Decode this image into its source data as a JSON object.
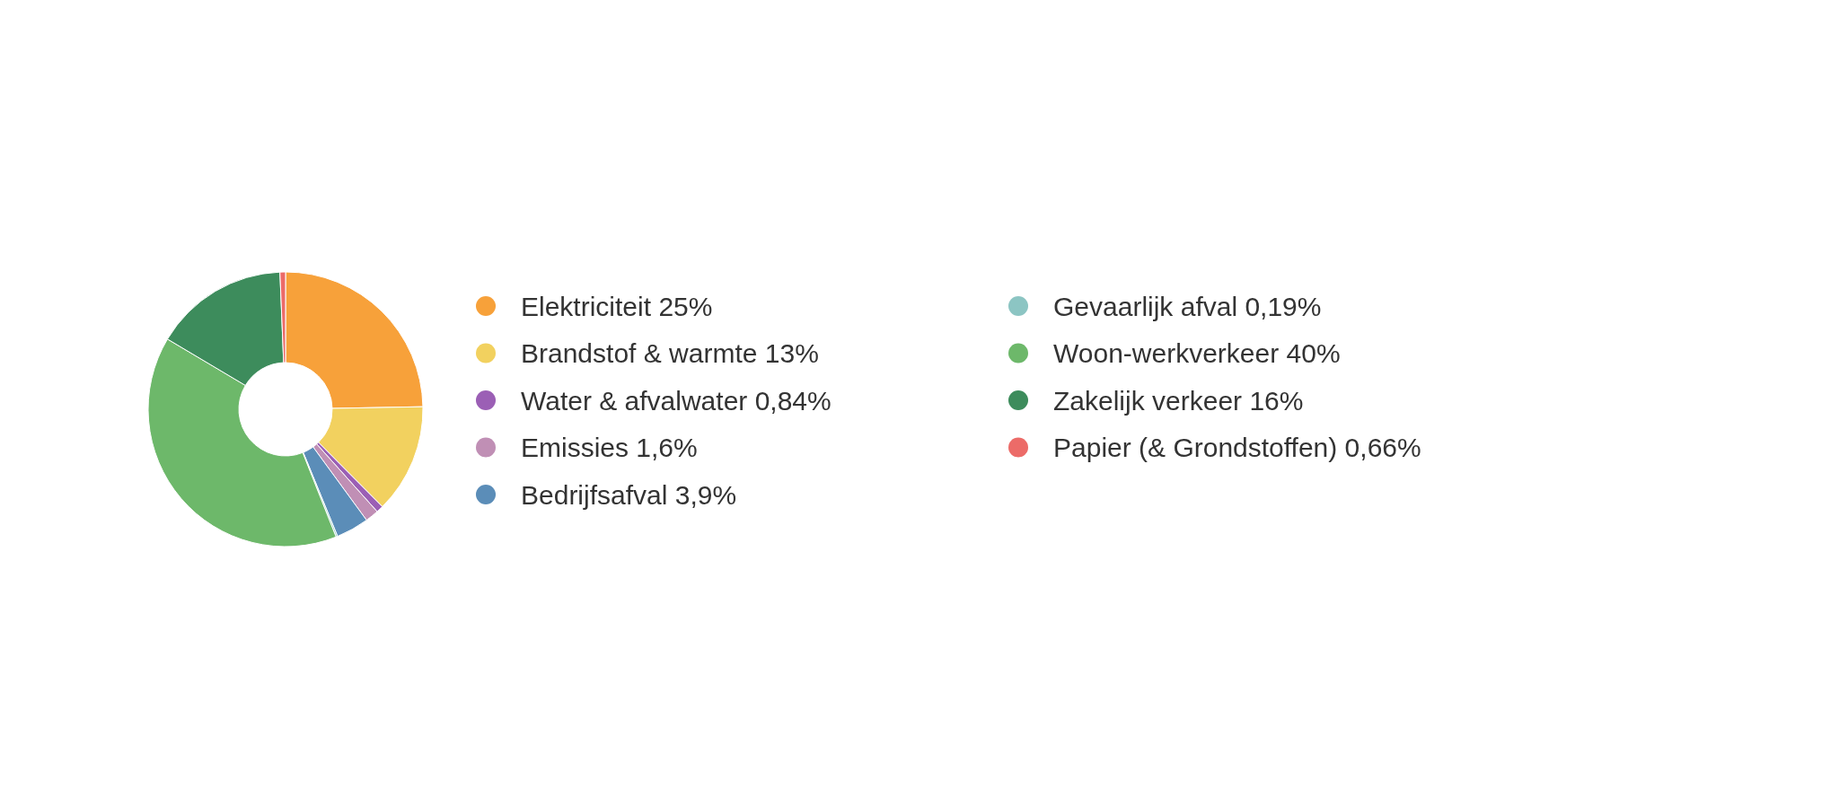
{
  "chart_data": {
    "type": "donut",
    "categories": [
      "Elektriciteit",
      "Brandstof & warmte",
      "Water & afvalwater",
      "Emissies",
      "Bedrijfsafval",
      "Gevaarlijk afval",
      "Woon-werkverkeer",
      "Zakelijk verkeer",
      "Papier (& Grondstoffen)"
    ],
    "values": [
      25,
      13,
      0.84,
      1.6,
      3.9,
      0.19,
      40,
      16,
      0.66
    ],
    "value_labels": [
      "25%",
      "13%",
      "0,84%",
      "1,6%",
      "3,9%",
      "0,19%",
      "40%",
      "16%",
      "0,66%"
    ],
    "colors": [
      "#f7a13a",
      "#f2d15f",
      "#9b5fb5",
      "#c08fb5",
      "#5b8db8",
      "#8cc5c3",
      "#6db86a",
      "#3d8c5c",
      "#ec6b68"
    ],
    "legend": "right"
  }
}
